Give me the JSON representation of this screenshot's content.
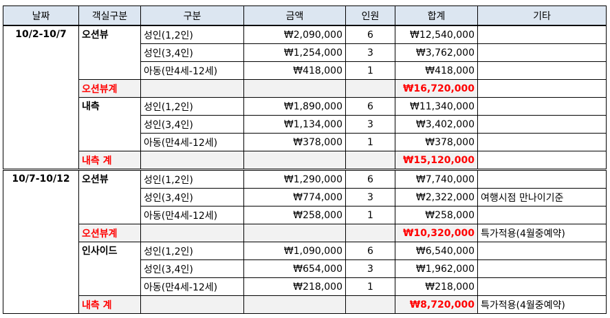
{
  "headers": [
    "날짜",
    "객실구분",
    "구분",
    "금액",
    "인원",
    "합계",
    "기타"
  ],
  "periods": [
    {
      "date": "10/2-10/7",
      "rooms": [
        {
          "name": "오션뷰",
          "rows": [
            {
              "type": "성인(1,2인)",
              "price": "₩2,090,000",
              "people": "6",
              "total": "₩12,540,000",
              "note": ""
            },
            {
              "type": "성인(3,4인)",
              "price": "₩1,254,000",
              "people": "3",
              "total": "₩3,762,000",
              "note": ""
            },
            {
              "type": "아동(만4세-12세)",
              "price": "₩418,000",
              "people": "1",
              "total": "₩418,000",
              "note": ""
            }
          ],
          "subtotal_label": "오션뷰계",
          "subtotal": "₩16,720,000",
          "subtotal_note": ""
        },
        {
          "name": "내측",
          "rows": [
            {
              "type": "성인(1,2인)",
              "price": "₩1,890,000",
              "people": "6",
              "total": "₩11,340,000",
              "note": ""
            },
            {
              "type": "성인(3,4인)",
              "price": "₩1,134,000",
              "people": "3",
              "total": "₩3,402,000",
              "note": ""
            },
            {
              "type": "아동(만4세-12세)",
              "price": "₩378,000",
              "people": "1",
              "total": "₩378,000",
              "note": ""
            }
          ],
          "subtotal_label": "내측 계",
          "subtotal": "₩15,120,000",
          "subtotal_note": ""
        }
      ]
    },
    {
      "date": "10/7-10/12",
      "rooms": [
        {
          "name": "오션뷰",
          "rows": [
            {
              "type": "성인(1,2인)",
              "price": "₩1,290,000",
              "people": "6",
              "total": "₩7,740,000",
              "note": ""
            },
            {
              "type": "성인(3,4인)",
              "price": "₩774,000",
              "people": "3",
              "total": "₩2,322,000",
              "note": "여행시점 만나이기준"
            },
            {
              "type": "아동(만4세-12세)",
              "price": "₩258,000",
              "people": "1",
              "total": "₩258,000",
              "note": ""
            }
          ],
          "subtotal_label": "오션뷰계",
          "subtotal": "₩10,320,000",
          "subtotal_note": "특가적용(4월중예약)"
        },
        {
          "name": "인사이드",
          "rows": [
            {
              "type": "성인(1,2인)",
              "price": "₩1,090,000",
              "people": "6",
              "total": "₩6,540,000",
              "note": ""
            },
            {
              "type": "성인(3,4인)",
              "price": "₩654,000",
              "people": "3",
              "total": "₩1,962,000",
              "note": ""
            },
            {
              "type": "아동(만4세-12세)",
              "price": "₩218,000",
              "people": "1",
              "total": "₩218,000",
              "note": ""
            }
          ],
          "subtotal_label": "내측 계",
          "subtotal": "₩8,720,000",
          "subtotal_note": "특가적용(4월중예약)"
        }
      ]
    }
  ],
  "colors": {
    "header_bg": "#dce6f1",
    "subtotal_bg": "#f2f2f2",
    "accent_red": "#ff0000"
  }
}
